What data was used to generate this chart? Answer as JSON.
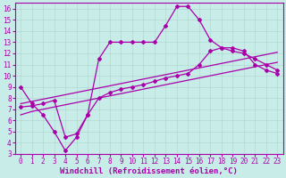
{
  "xlabel": "Windchill (Refroidissement éolien,°C)",
  "bg_color": "#c8ece8",
  "line_color": "#aa00aa",
  "grid_color": "#b0d8d0",
  "xlim": [
    -0.5,
    23.5
  ],
  "ylim": [
    3,
    16.5
  ],
  "xticks": [
    0,
    1,
    2,
    3,
    4,
    5,
    6,
    7,
    8,
    9,
    10,
    11,
    12,
    13,
    14,
    15,
    16,
    17,
    18,
    19,
    20,
    21,
    22,
    23
  ],
  "yticks": [
    3,
    4,
    5,
    6,
    7,
    8,
    9,
    10,
    11,
    12,
    13,
    14,
    15,
    16
  ],
  "curve1_x": [
    0,
    1,
    2,
    3,
    4,
    5,
    6,
    7,
    8,
    9,
    10,
    11,
    12,
    13,
    14,
    15,
    16,
    17,
    18,
    19,
    20,
    21,
    22,
    23
  ],
  "curve1_y": [
    9.0,
    7.5,
    6.5,
    5.0,
    3.3,
    4.5,
    6.5,
    11.5,
    13.0,
    13.0,
    13.0,
    13.0,
    13.0,
    14.5,
    16.2,
    16.2,
    15.0,
    13.2,
    12.5,
    12.5,
    12.2,
    11.0,
    10.5,
    10.2
  ],
  "curve2_x": [
    0,
    1,
    2,
    3,
    4,
    5,
    6,
    7,
    8,
    9,
    10,
    11,
    12,
    13,
    14,
    15,
    16,
    17,
    18,
    19,
    20,
    21,
    22,
    23
  ],
  "curve2_y": [
    6.5,
    6.8,
    7.0,
    7.2,
    7.4,
    7.6,
    7.8,
    8.0,
    8.2,
    8.4,
    8.6,
    8.8,
    9.0,
    9.2,
    9.4,
    9.6,
    9.8,
    10.0,
    10.2,
    10.4,
    10.6,
    10.8,
    11.0,
    11.2
  ],
  "curve3_x": [
    0,
    1,
    2,
    3,
    4,
    5,
    6,
    7,
    8,
    9,
    10,
    11,
    12,
    13,
    14,
    15,
    16,
    17,
    18,
    19,
    20,
    21,
    22,
    23
  ],
  "curve3_y": [
    7.5,
    7.7,
    7.9,
    8.1,
    8.3,
    8.5,
    8.7,
    8.9,
    9.1,
    9.3,
    9.5,
    9.7,
    9.9,
    10.1,
    10.3,
    10.5,
    10.7,
    10.9,
    11.1,
    11.3,
    11.5,
    11.7,
    11.9,
    12.1
  ],
  "curve4_x": [
    0,
    1,
    2,
    3,
    4,
    5,
    6,
    7,
    8,
    9,
    10,
    11,
    12,
    13,
    14,
    15,
    16,
    17,
    18,
    19,
    20,
    21,
    22,
    23
  ],
  "curve4_y": [
    7.2,
    7.3,
    7.5,
    7.8,
    4.5,
    4.8,
    6.5,
    8.0,
    8.5,
    8.8,
    9.0,
    9.2,
    9.5,
    9.8,
    10.0,
    10.2,
    11.0,
    12.2,
    12.5,
    12.2,
    12.0,
    11.5,
    11.0,
    10.5
  ],
  "tick_fontsize": 5.5,
  "label_fontsize": 6.5
}
